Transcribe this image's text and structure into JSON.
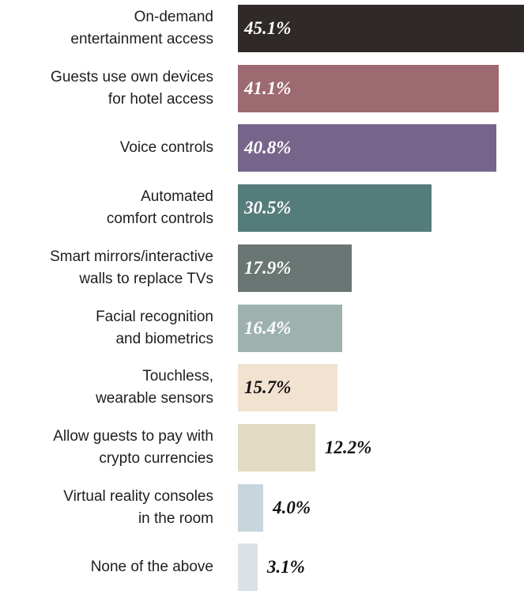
{
  "chart_data": {
    "type": "bar",
    "orientation": "horizontal",
    "categories": [
      "On-demand\nentertainment access",
      "Guests use own devices\nfor hotel access",
      "Voice controls",
      "Automated\ncomfort controls",
      "Smart mirrors/interactive\nwalls to replace TVs",
      "Facial recognition\nand biometrics",
      "Touchless,\nwearable sensors",
      "Allow guests to pay with\ncrypto currencies",
      "Virtual reality consoles\nin the room",
      "None of the above"
    ],
    "values": [
      45.1,
      41.1,
      40.8,
      30.5,
      17.9,
      16.4,
      15.7,
      12.2,
      4.0,
      3.1
    ],
    "value_labels": [
      "45.1%",
      "41.1%",
      "40.8%",
      "30.5%",
      "17.9%",
      "16.4%",
      "15.7%",
      "12.2%",
      "4.0%",
      "3.1%"
    ],
    "colors": [
      "#2f2a28",
      "#9e6a71",
      "#76648a",
      "#547c7a",
      "#6a7673",
      "#9db2ae",
      "#f2e2d0",
      "#e1dbc3",
      "#c9d5dc",
      "#dbe2e7"
    ],
    "label_colors": [
      "#ffffff",
      "#ffffff",
      "#ffffff",
      "#ffffff",
      "#ffffff",
      "#ffffff",
      "#111111",
      "#111111",
      "#111111",
      "#111111"
    ],
    "xlim": [
      0,
      45.1
    ],
    "title": "",
    "xlabel": "",
    "ylabel": ""
  }
}
